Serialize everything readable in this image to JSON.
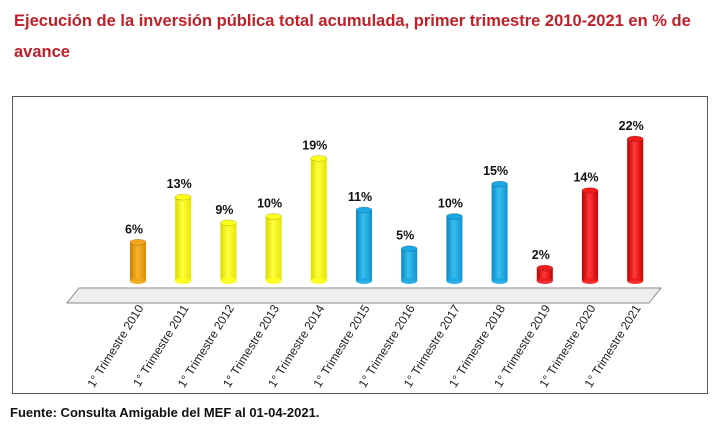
{
  "title": "Ejecución de la inversión pública total acumulada, primer trimestre 2010-2021 en % de avance",
  "source": "Fuente: Consulta Amigable del MEF al 01-04-2021.",
  "colors": {
    "title": "#c0202a",
    "orange": "#f2a51a",
    "yellow": "#ffff1a",
    "blue": "#1ba7e3",
    "red": "#ee1c1c"
  },
  "chart_data": {
    "type": "bar",
    "title": "Ejecución de la inversión pública total acumulada, primer trimestre 2010-2021 en % de avance",
    "xlabel": "",
    "ylabel": "",
    "grid": false,
    "legend": false,
    "ylim": [
      0,
      22
    ],
    "categories": [
      "1° Trimestre 2010",
      "1° Trimestre 2011",
      "1° Trimestre 2012",
      "1° Trimestre 2013",
      "1° Trimestre 2014",
      "1° Trimestre 2015",
      "1° Trimestre 2016",
      "1° Trimestre 2017",
      "1° Trimestre 2018",
      "1° Trimestre 2019",
      "1° Trimestre 2020",
      "1° Trimestre 2021"
    ],
    "values": [
      6,
      13,
      9,
      10,
      19,
      11,
      5,
      10,
      15,
      2,
      14,
      22
    ],
    "data_labels": [
      "6%",
      "13%",
      "9%",
      "10%",
      "19%",
      "11%",
      "5%",
      "10%",
      "15%",
      "2%",
      "14%",
      "22%"
    ],
    "bar_colors": [
      "orange",
      "yellow",
      "yellow",
      "yellow",
      "yellow",
      "blue",
      "blue",
      "blue",
      "blue",
      "red",
      "red",
      "red"
    ]
  }
}
